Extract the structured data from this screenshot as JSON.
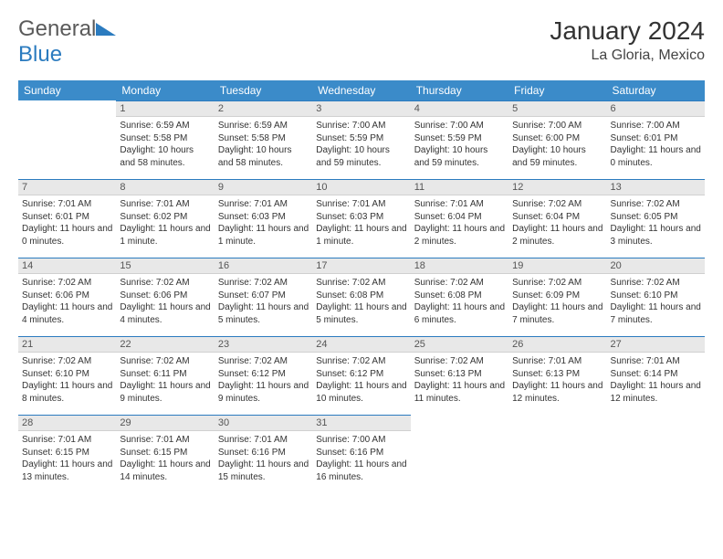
{
  "brand": {
    "name_a": "General",
    "name_b": "Blue"
  },
  "title": "January 2024",
  "location": "La Gloria, Mexico",
  "colors": {
    "header_bg": "#3b8bc9",
    "accent": "#2b7bbf",
    "daynum_bg": "#e8e8e8",
    "text": "#333333"
  },
  "weekdays": [
    "Sunday",
    "Monday",
    "Tuesday",
    "Wednesday",
    "Thursday",
    "Friday",
    "Saturday"
  ],
  "weeks": [
    [
      null,
      {
        "n": "1",
        "sr": "6:59 AM",
        "ss": "5:58 PM",
        "dl": "10 hours and 58 minutes."
      },
      {
        "n": "2",
        "sr": "6:59 AM",
        "ss": "5:58 PM",
        "dl": "10 hours and 58 minutes."
      },
      {
        "n": "3",
        "sr": "7:00 AM",
        "ss": "5:59 PM",
        "dl": "10 hours and 59 minutes."
      },
      {
        "n": "4",
        "sr": "7:00 AM",
        "ss": "5:59 PM",
        "dl": "10 hours and 59 minutes."
      },
      {
        "n": "5",
        "sr": "7:00 AM",
        "ss": "6:00 PM",
        "dl": "10 hours and 59 minutes."
      },
      {
        "n": "6",
        "sr": "7:00 AM",
        "ss": "6:01 PM",
        "dl": "11 hours and 0 minutes."
      }
    ],
    [
      {
        "n": "7",
        "sr": "7:01 AM",
        "ss": "6:01 PM",
        "dl": "11 hours and 0 minutes."
      },
      {
        "n": "8",
        "sr": "7:01 AM",
        "ss": "6:02 PM",
        "dl": "11 hours and 1 minute."
      },
      {
        "n": "9",
        "sr": "7:01 AM",
        "ss": "6:03 PM",
        "dl": "11 hours and 1 minute."
      },
      {
        "n": "10",
        "sr": "7:01 AM",
        "ss": "6:03 PM",
        "dl": "11 hours and 1 minute."
      },
      {
        "n": "11",
        "sr": "7:01 AM",
        "ss": "6:04 PM",
        "dl": "11 hours and 2 minutes."
      },
      {
        "n": "12",
        "sr": "7:02 AM",
        "ss": "6:04 PM",
        "dl": "11 hours and 2 minutes."
      },
      {
        "n": "13",
        "sr": "7:02 AM",
        "ss": "6:05 PM",
        "dl": "11 hours and 3 minutes."
      }
    ],
    [
      {
        "n": "14",
        "sr": "7:02 AM",
        "ss": "6:06 PM",
        "dl": "11 hours and 4 minutes."
      },
      {
        "n": "15",
        "sr": "7:02 AM",
        "ss": "6:06 PM",
        "dl": "11 hours and 4 minutes."
      },
      {
        "n": "16",
        "sr": "7:02 AM",
        "ss": "6:07 PM",
        "dl": "11 hours and 5 minutes."
      },
      {
        "n": "17",
        "sr": "7:02 AM",
        "ss": "6:08 PM",
        "dl": "11 hours and 5 minutes."
      },
      {
        "n": "18",
        "sr": "7:02 AM",
        "ss": "6:08 PM",
        "dl": "11 hours and 6 minutes."
      },
      {
        "n": "19",
        "sr": "7:02 AM",
        "ss": "6:09 PM",
        "dl": "11 hours and 7 minutes."
      },
      {
        "n": "20",
        "sr": "7:02 AM",
        "ss": "6:10 PM",
        "dl": "11 hours and 7 minutes."
      }
    ],
    [
      {
        "n": "21",
        "sr": "7:02 AM",
        "ss": "6:10 PM",
        "dl": "11 hours and 8 minutes."
      },
      {
        "n": "22",
        "sr": "7:02 AM",
        "ss": "6:11 PM",
        "dl": "11 hours and 9 minutes."
      },
      {
        "n": "23",
        "sr": "7:02 AM",
        "ss": "6:12 PM",
        "dl": "11 hours and 9 minutes."
      },
      {
        "n": "24",
        "sr": "7:02 AM",
        "ss": "6:12 PM",
        "dl": "11 hours and 10 minutes."
      },
      {
        "n": "25",
        "sr": "7:02 AM",
        "ss": "6:13 PM",
        "dl": "11 hours and 11 minutes."
      },
      {
        "n": "26",
        "sr": "7:01 AM",
        "ss": "6:13 PM",
        "dl": "11 hours and 12 minutes."
      },
      {
        "n": "27",
        "sr": "7:01 AM",
        "ss": "6:14 PM",
        "dl": "11 hours and 12 minutes."
      }
    ],
    [
      {
        "n": "28",
        "sr": "7:01 AM",
        "ss": "6:15 PM",
        "dl": "11 hours and 13 minutes."
      },
      {
        "n": "29",
        "sr": "7:01 AM",
        "ss": "6:15 PM",
        "dl": "11 hours and 14 minutes."
      },
      {
        "n": "30",
        "sr": "7:01 AM",
        "ss": "6:16 PM",
        "dl": "11 hours and 15 minutes."
      },
      {
        "n": "31",
        "sr": "7:00 AM",
        "ss": "6:16 PM",
        "dl": "11 hours and 16 minutes."
      },
      null,
      null,
      null
    ]
  ],
  "labels": {
    "sunrise": "Sunrise:",
    "sunset": "Sunset:",
    "daylight": "Daylight:"
  }
}
